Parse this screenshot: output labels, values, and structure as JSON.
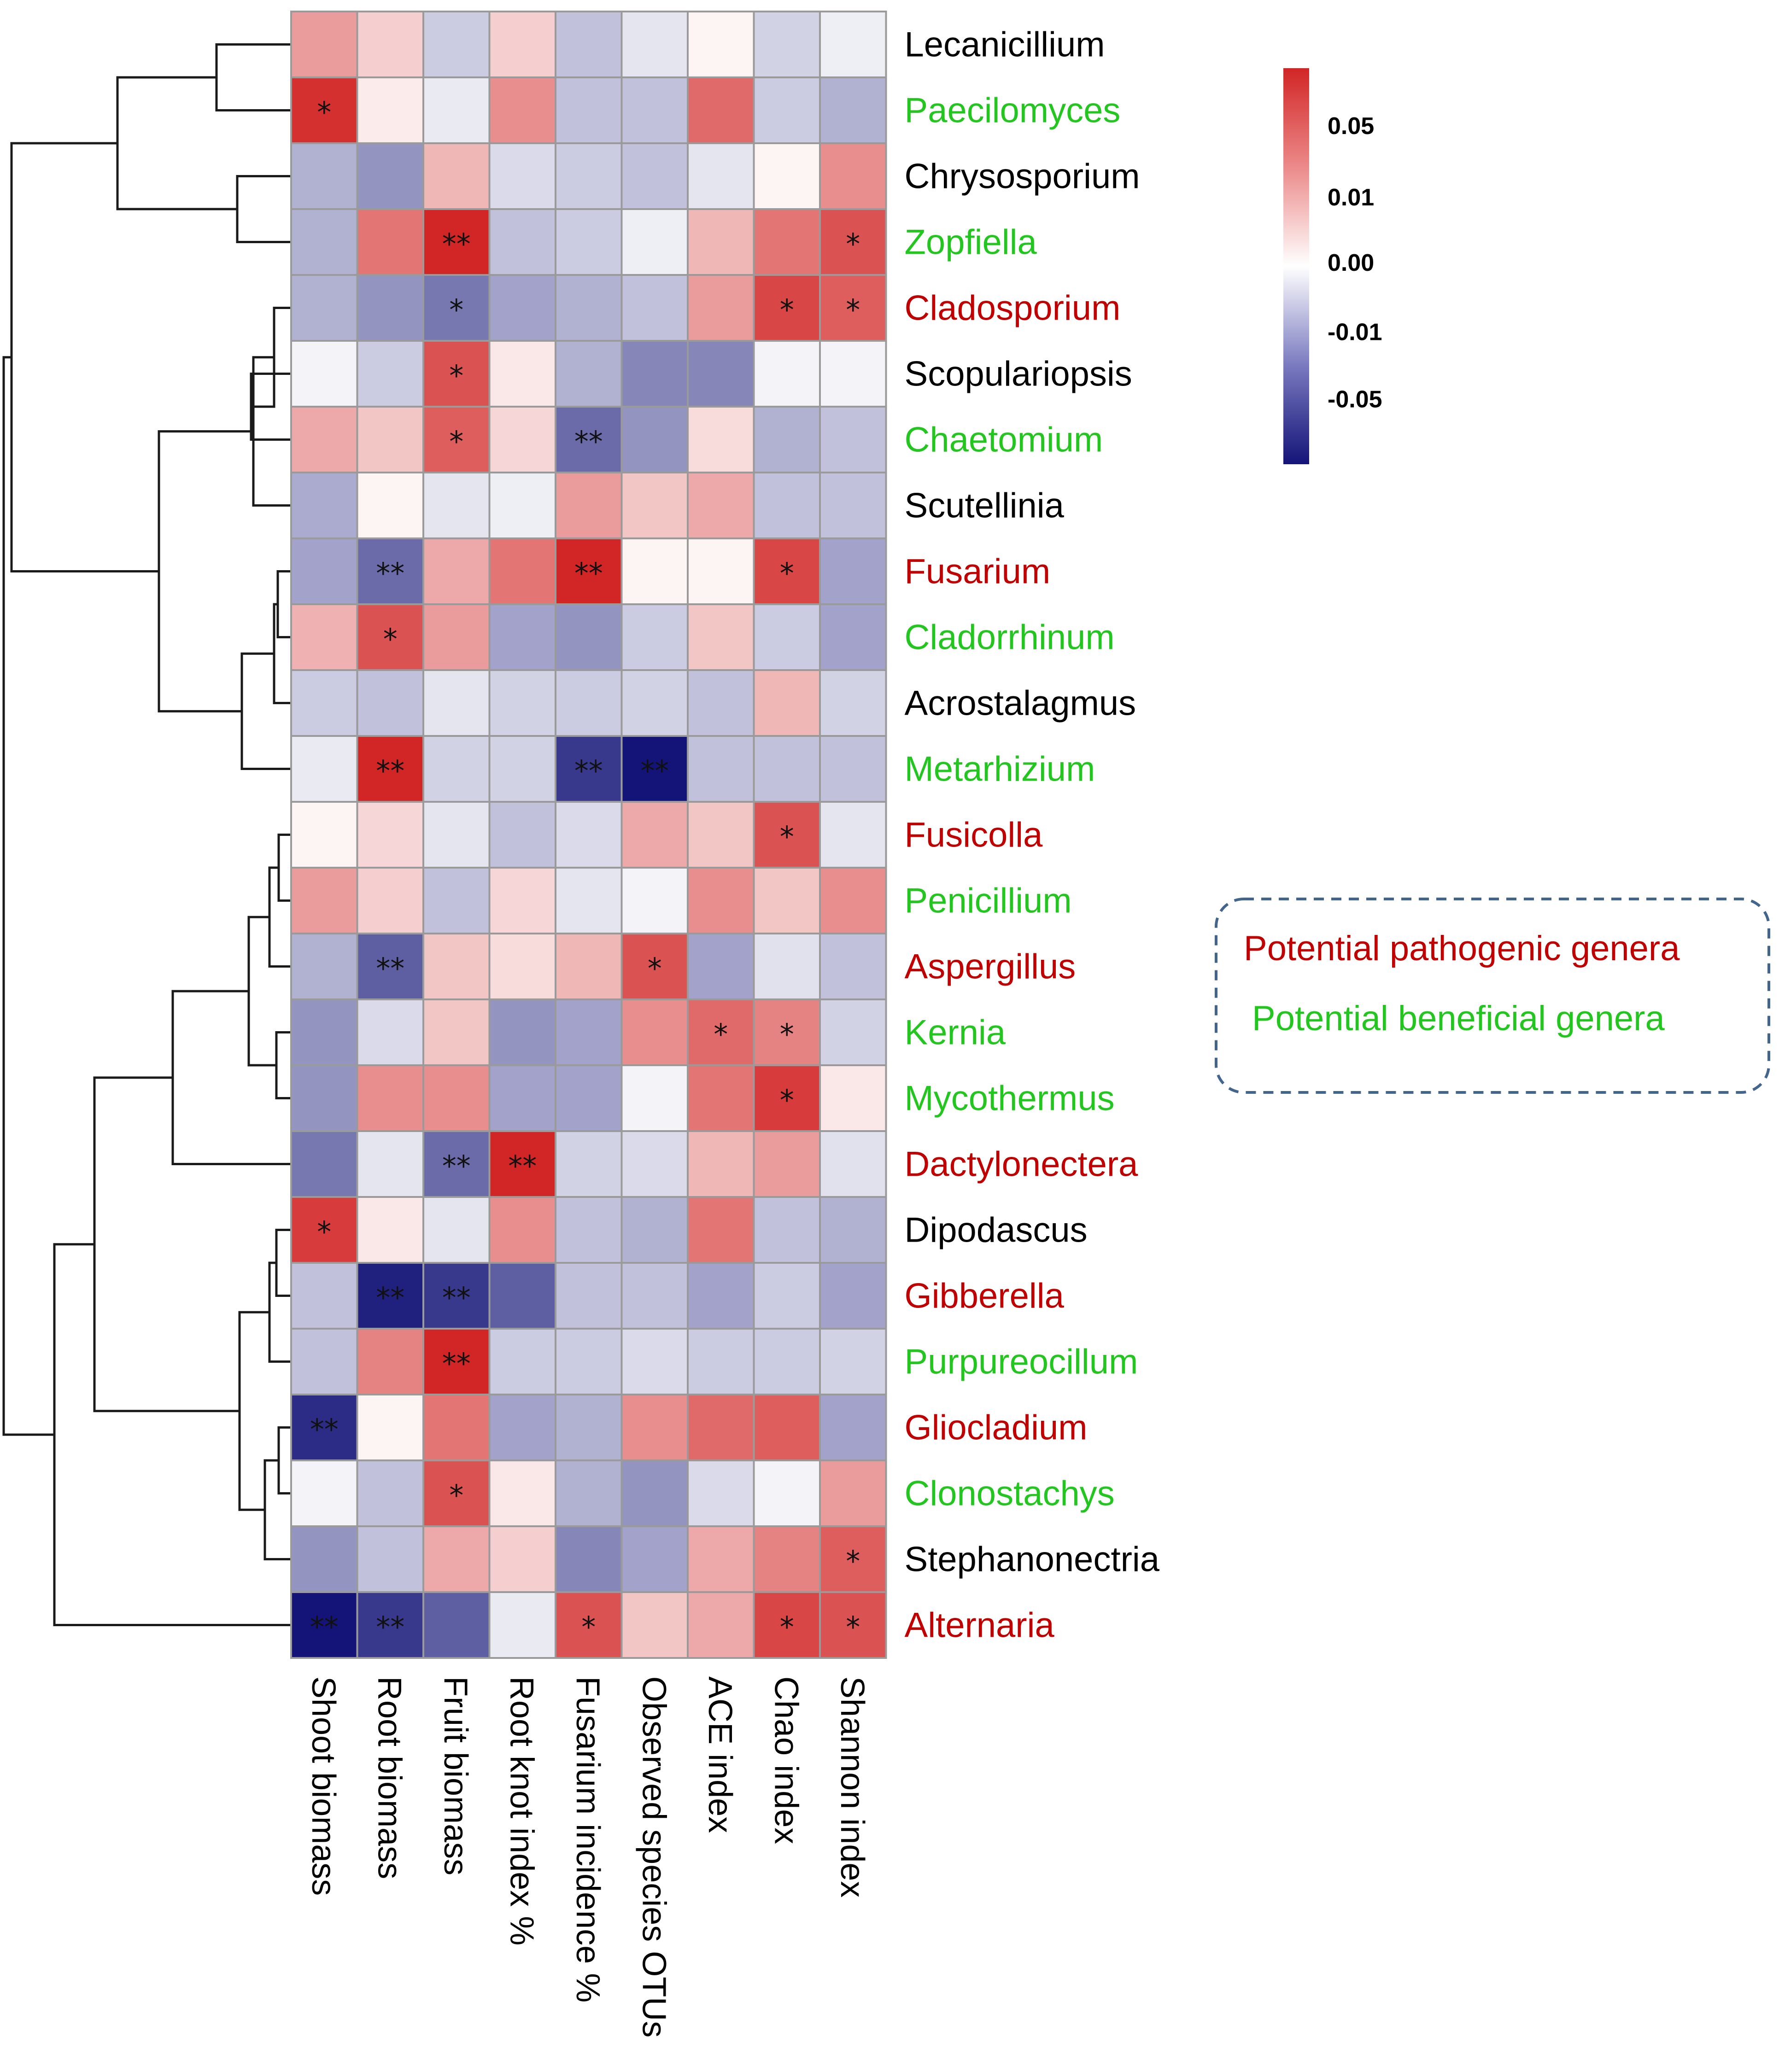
{
  "chart_data": {
    "type": "heatmap",
    "title": "",
    "value_range": [
      -0.08,
      0.08
    ],
    "columns": [
      "Shoot biomass",
      "Root biomass",
      "Fruit biomass",
      "Root knot index  %",
      "Fusarium incidence %",
      "Observed species OTUs",
      "ACE index",
      "Chao index",
      "Shannon index"
    ],
    "rows": [
      {
        "name": "Lecanicillium",
        "group": "other",
        "values": [
          0.03,
          0.012,
          -0.012,
          0.012,
          -0.015,
          -0.005,
          0.002,
          -0.01,
          -0.003
        ],
        "sig": [
          "",
          "",
          "",
          "",
          "",
          "",
          "",
          "",
          ""
        ]
      },
      {
        "name": "Paecilomyces",
        "group": "beneficial",
        "values": [
          0.075,
          0.004,
          -0.004,
          0.035,
          -0.015,
          -0.015,
          0.05,
          -0.012,
          -0.02
        ],
        "sig": [
          "*",
          "",
          "",
          "",
          "",
          "",
          "",
          "",
          ""
        ]
      },
      {
        "name": "Chrysosporium",
        "group": "other",
        "values": [
          -0.02,
          -0.03,
          0.02,
          -0.008,
          -0.012,
          -0.015,
          -0.005,
          0.002,
          0.035
        ],
        "sig": [
          "",
          "",
          "",
          "",
          "",
          "",
          "",
          "",
          ""
        ]
      },
      {
        "name": "Zopfiella",
        "group": "beneficial",
        "values": [
          -0.02,
          0.045,
          0.085,
          -0.015,
          -0.012,
          -0.003,
          0.02,
          0.045,
          0.06
        ],
        "sig": [
          "",
          "",
          "**",
          "",
          "",
          "",
          "",
          "",
          "*"
        ]
      },
      {
        "name": "Cladosporium",
        "group": "pathogenic",
        "values": [
          -0.02,
          -0.03,
          -0.04,
          -0.025,
          -0.02,
          -0.015,
          0.03,
          0.065,
          0.055
        ],
        "sig": [
          "",
          "",
          "*",
          "",
          "",
          "",
          "",
          "*",
          "*"
        ]
      },
      {
        "name": "Scopulariopsis",
        "group": "other",
        "values": [
          -0.002,
          -0.012,
          0.06,
          0.005,
          -0.02,
          -0.035,
          -0.035,
          -0.002,
          -0.002
        ],
        "sig": [
          "",
          "",
          "*",
          "",
          "",
          "",
          "",
          "",
          ""
        ]
      },
      {
        "name": "Chaetomium",
        "group": "beneficial",
        "values": [
          0.025,
          0.015,
          0.055,
          0.01,
          -0.045,
          -0.03,
          0.008,
          -0.02,
          -0.015
        ],
        "sig": [
          "",
          "",
          "*",
          "",
          "**",
          "",
          "",
          "",
          ""
        ]
      },
      {
        "name": "Scutellinia",
        "group": "other",
        "values": [
          -0.022,
          0.002,
          -0.005,
          -0.003,
          0.03,
          0.015,
          0.025,
          -0.015,
          -0.015
        ],
        "sig": [
          "",
          "",
          "",
          "",
          "",
          "",
          "",
          "",
          ""
        ]
      },
      {
        "name": "Fusarium",
        "group": "pathogenic",
        "values": [
          -0.025,
          -0.045,
          0.025,
          0.045,
          0.08,
          0.002,
          0.002,
          0.065,
          -0.025
        ],
        "sig": [
          "",
          "**",
          "",
          "",
          "**",
          "",
          "",
          "*",
          ""
        ]
      },
      {
        "name": "Cladorrhinum",
        "group": "beneficial",
        "values": [
          0.022,
          0.06,
          0.03,
          -0.025,
          -0.03,
          -0.012,
          0.015,
          -0.012,
          -0.025
        ],
        "sig": [
          "",
          "*",
          "",
          "",
          "",
          "",
          "",
          "",
          ""
        ]
      },
      {
        "name": "Acrostalagmus",
        "group": "other",
        "values": [
          -0.012,
          -0.015,
          -0.005,
          -0.01,
          -0.012,
          -0.01,
          -0.015,
          0.02,
          -0.01
        ],
        "sig": [
          "",
          "",
          "",
          "",
          "",
          "",
          "",
          "",
          ""
        ]
      },
      {
        "name": "Metarhizium",
        "group": "beneficial",
        "values": [
          -0.004,
          0.085,
          -0.01,
          -0.01,
          -0.065,
          -0.08,
          -0.015,
          -0.015,
          -0.015
        ],
        "sig": [
          "",
          "**",
          "",
          "",
          "**",
          "**",
          "",
          "",
          ""
        ]
      },
      {
        "name": "Fusicolla",
        "group": "pathogenic",
        "values": [
          0.002,
          0.01,
          -0.005,
          -0.015,
          -0.008,
          0.025,
          0.015,
          0.06,
          -0.005
        ],
        "sig": [
          "",
          "",
          "",
          "",
          "",
          "",
          "",
          "*",
          ""
        ]
      },
      {
        "name": "Penicillium",
        "group": "beneficial",
        "values": [
          0.03,
          0.012,
          -0.015,
          0.01,
          -0.005,
          -0.002,
          0.035,
          0.015,
          0.035
        ],
        "sig": [
          "",
          "",
          "",
          "",
          "",
          "",
          "",
          "",
          ""
        ]
      },
      {
        "name": "Aspergillus",
        "group": "pathogenic",
        "values": [
          -0.02,
          -0.05,
          0.015,
          0.008,
          0.02,
          0.06,
          -0.025,
          -0.006,
          -0.015
        ],
        "sig": [
          "",
          "**",
          "",
          "",
          "",
          "*",
          "",
          "",
          ""
        ]
      },
      {
        "name": "Kernia",
        "group": "beneficial",
        "values": [
          -0.03,
          -0.008,
          0.015,
          -0.03,
          -0.025,
          0.035,
          0.05,
          0.04,
          -0.01
        ],
        "sig": [
          "",
          "",
          "",
          "",
          "",
          "",
          "*",
          "*",
          ""
        ]
      },
      {
        "name": "Mycothermus",
        "group": "beneficial",
        "values": [
          -0.03,
          0.035,
          0.035,
          -0.025,
          -0.025,
          -0.002,
          0.045,
          0.07,
          0.005
        ],
        "sig": [
          "",
          "",
          "",
          "",
          "",
          "",
          "",
          "*",
          ""
        ]
      },
      {
        "name": "Dactylonectera",
        "group": "pathogenic",
        "values": [
          -0.04,
          -0.005,
          -0.045,
          0.085,
          -0.01,
          -0.008,
          0.02,
          0.03,
          -0.006
        ],
        "sig": [
          "",
          "",
          "**",
          "**",
          "",
          "",
          "",
          "",
          ""
        ]
      },
      {
        "name": "Dipodascus",
        "group": "other",
        "values": [
          0.07,
          0.005,
          -0.005,
          0.035,
          -0.015,
          -0.02,
          0.045,
          -0.015,
          -0.02
        ],
        "sig": [
          "*",
          "",
          "",
          "",
          "",
          "",
          "",
          "",
          ""
        ]
      },
      {
        "name": "Gibberella",
        "group": "pathogenic",
        "values": [
          -0.015,
          -0.075,
          -0.065,
          -0.05,
          -0.015,
          -0.015,
          -0.025,
          -0.012,
          -0.025
        ],
        "sig": [
          "",
          "**",
          "**",
          "",
          "",
          "",
          "",
          "",
          ""
        ]
      },
      {
        "name": "Purpureocillum",
        "group": "beneficial",
        "values": [
          -0.015,
          0.04,
          0.08,
          -0.012,
          -0.012,
          -0.008,
          -0.012,
          -0.012,
          -0.01
        ],
        "sig": [
          "",
          "",
          "**",
          "",
          "",
          "",
          "",
          "",
          ""
        ]
      },
      {
        "name": "Gliocladium",
        "group": "pathogenic",
        "values": [
          -0.07,
          0.002,
          0.045,
          -0.025,
          -0.02,
          0.035,
          0.05,
          0.055,
          -0.025
        ],
        "sig": [
          "**",
          "",
          "",
          "",
          "",
          "",
          "",
          "",
          ""
        ]
      },
      {
        "name": "Clonostachys",
        "group": "beneficial",
        "values": [
          -0.002,
          -0.015,
          0.06,
          0.005,
          -0.02,
          -0.03,
          -0.008,
          -0.002,
          0.03
        ],
        "sig": [
          "",
          "",
          "*",
          "",
          "",
          "",
          "",
          "",
          ""
        ]
      },
      {
        "name": "Stephanonectria",
        "group": "other",
        "values": [
          -0.03,
          -0.015,
          0.025,
          0.012,
          -0.035,
          -0.025,
          0.025,
          0.04,
          0.055
        ],
        "sig": [
          "",
          "",
          "",
          "",
          "",
          "",
          "",
          "",
          "*"
        ]
      },
      {
        "name": "Alternaria",
        "group": "pathogenic",
        "values": [
          -0.08,
          -0.065,
          -0.05,
          -0.004,
          0.06,
          0.015,
          0.025,
          0.065,
          0.06
        ],
        "sig": [
          "**",
          "**",
          "",
          "",
          "*",
          "",
          "",
          "*",
          "*"
        ]
      }
    ],
    "colorbar": {
      "ticks": [
        {
          "label": "0.05",
          "value": 0.05
        },
        {
          "label": "0.01",
          "value": 0.01
        },
        {
          "label": "0.00",
          "value": 0.0
        },
        {
          "label": "-0.01",
          "value": -0.01
        },
        {
          "label": "-0.05",
          "value": -0.05
        }
      ]
    },
    "legend": [
      {
        "label": "Potential pathogenic genera",
        "group": "pathogenic"
      },
      {
        "label": "Potential beneficial genera",
        "group": "beneficial"
      }
    ],
    "dendrogram_order": "rows clustered hierarchically (left dendrogram)"
  },
  "colors": {
    "pathogenic": "#c00000",
    "beneficial": "#22c61f",
    "other": "#000000",
    "high": "#d22525",
    "mid": "#ffffff",
    "low": "#141478",
    "grid": "#9a9a9a",
    "legend_border": "#41658c"
  }
}
